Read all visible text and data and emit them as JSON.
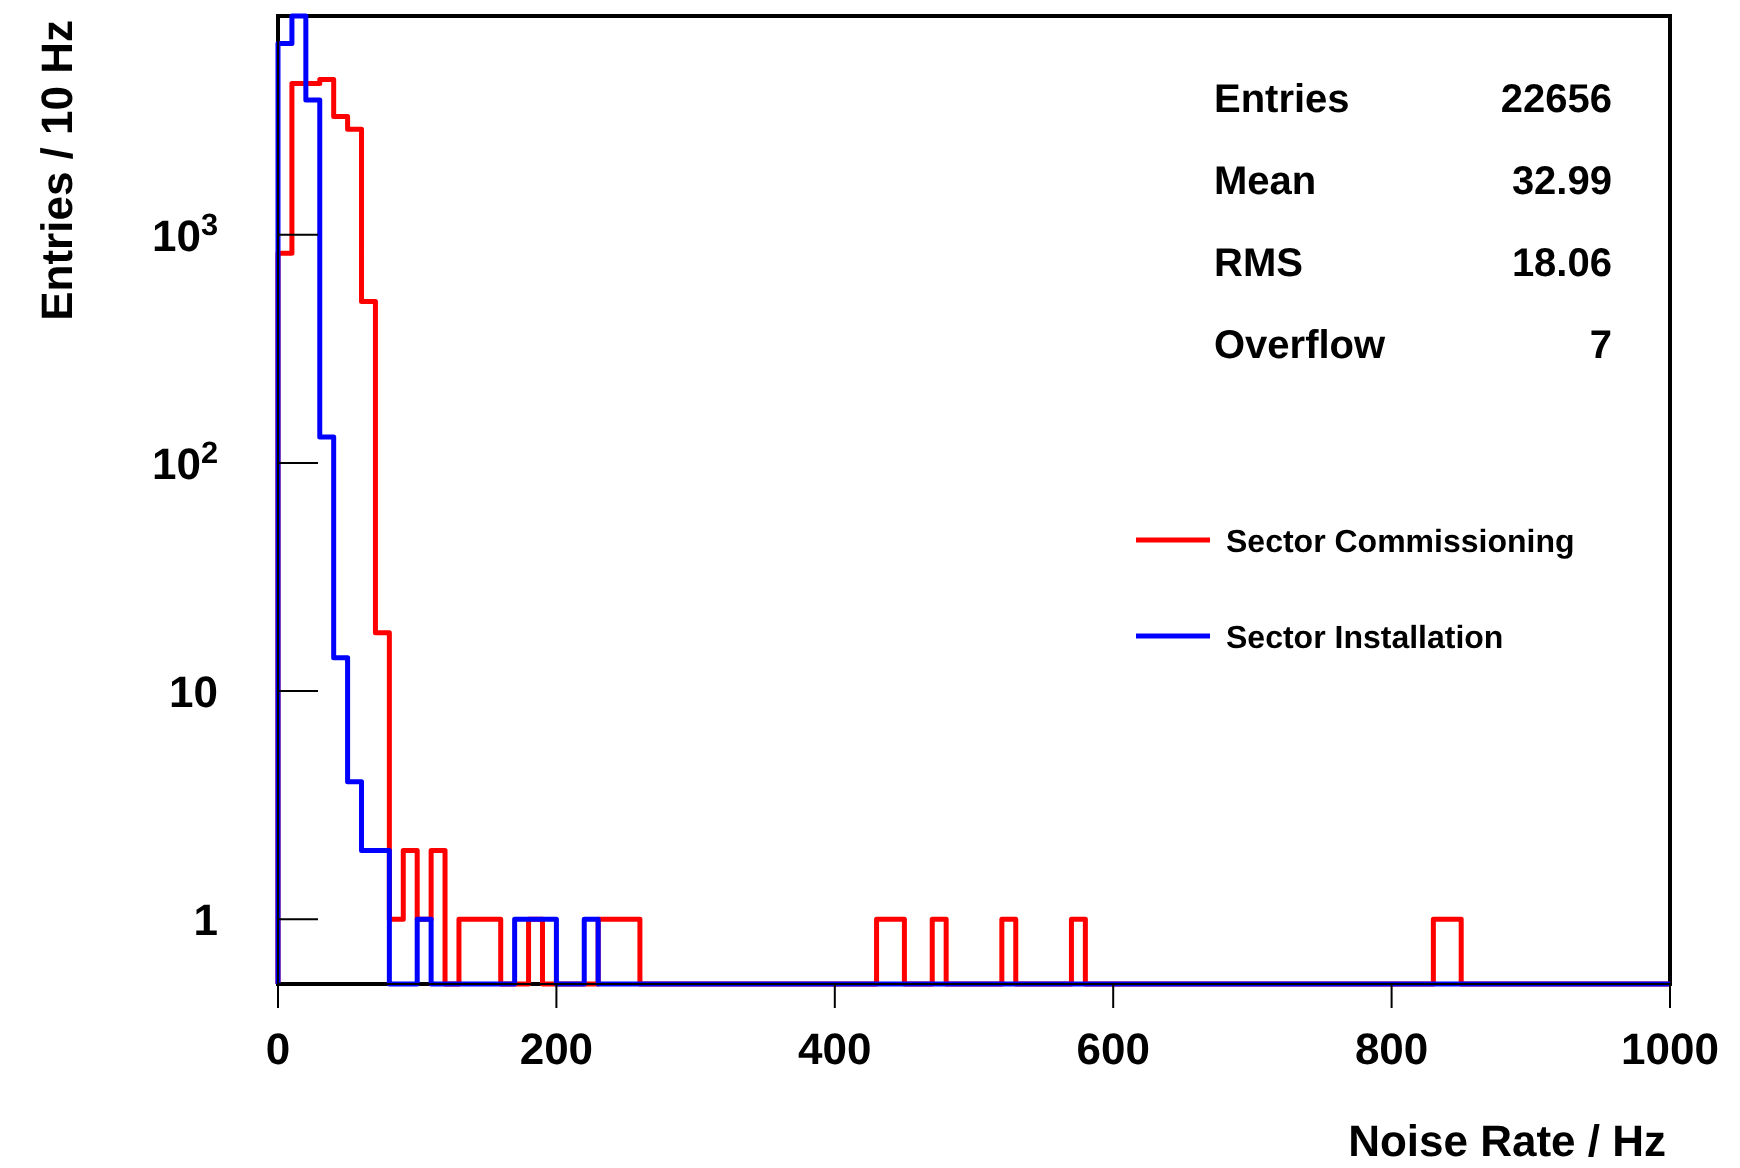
{
  "chart_data": {
    "type": "histogram",
    "xlabel": "Noise Rate  / Hz",
    "ylabel": "Entries  / 10 Hz",
    "annotations": [
      "Entries",
      "22656",
      "Mean",
      "32.99",
      "RMS",
      "18.06",
      "Overflow",
      "7"
    ],
    "bins": [
      0,
      10,
      20,
      30,
      40,
      50,
      60,
      70,
      80,
      90,
      100,
      110,
      120,
      130,
      140,
      150,
      160,
      170,
      180,
      190,
      200,
      210,
      220,
      230,
      240,
      250,
      260,
      270,
      280,
      290,
      300,
      310,
      320,
      330,
      340,
      350,
      360,
      370,
      380,
      390,
      400,
      410,
      420,
      430,
      440,
      450,
      460,
      470,
      480,
      490,
      500,
      510,
      520,
      530,
      540,
      550,
      560,
      570,
      580,
      590,
      600,
      610,
      620,
      630,
      640,
      650,
      660,
      670,
      680,
      690,
      700,
      710,
      720,
      730,
      740,
      750,
      760,
      770,
      780,
      790,
      800,
      810,
      820,
      830,
      840,
      850,
      860,
      870,
      880,
      890,
      900,
      910,
      920,
      930,
      940,
      950,
      960,
      970,
      980,
      990,
      1000
    ],
    "series": [
      {
        "name": "Sector Commissioning",
        "color": "#ff0000",
        "values": [
          830,
          4600,
          4600,
          4800,
          3300,
          2900,
          510,
          18,
          1,
          2,
          1,
          2,
          null,
          1,
          1,
          1,
          null,
          null,
          1,
          null,
          null,
          null,
          null,
          1,
          1,
          1,
          null,
          null,
          null,
          null,
          null,
          null,
          null,
          null,
          null,
          null,
          null,
          null,
          null,
          null,
          null,
          null,
          null,
          1,
          1,
          null,
          null,
          1,
          null,
          null,
          null,
          null,
          1,
          null,
          null,
          null,
          null,
          1,
          null,
          null,
          null,
          null,
          null,
          null,
          null,
          null,
          null,
          null,
          null,
          null,
          null,
          null,
          null,
          null,
          null,
          null,
          null,
          null,
          null,
          null,
          null,
          null,
          null,
          1,
          1,
          null,
          null,
          null,
          null,
          null,
          null,
          null,
          null,
          null,
          null,
          null,
          null,
          null,
          null,
          null
        ]
      },
      {
        "name": "Sector Installation",
        "color": "#0000ff",
        "values": [
          6900,
          9100,
          3900,
          130,
          14,
          4,
          2,
          2,
          null,
          null,
          1,
          null,
          null,
          null,
          null,
          null,
          null,
          1,
          1,
          1,
          null,
          null,
          1,
          null,
          null,
          null,
          null,
          null,
          null,
          null,
          null,
          null,
          null,
          null,
          null,
          null,
          null,
          null,
          null,
          null,
          null,
          null,
          null,
          null,
          null,
          null,
          null,
          null,
          null,
          null,
          null,
          null,
          null,
          null,
          null,
          null,
          null,
          null,
          null,
          null,
          null,
          null,
          null,
          null,
          null,
          null,
          null,
          null,
          null,
          null,
          null,
          null,
          null,
          null,
          null,
          null,
          null,
          null,
          null,
          null,
          null,
          null,
          null,
          null,
          null,
          null,
          null,
          null,
          null,
          null,
          null,
          null,
          null,
          null,
          null,
          null,
          null,
          null,
          null,
          null
        ]
      }
    ],
    "xlim": [
      0,
      1000
    ],
    "xticks": [
      0,
      200,
      400,
      600,
      800,
      1000
    ],
    "ylim": [
      0.52,
      9100
    ],
    "yticks": [
      1,
      10,
      {
        "value": 100,
        "label": "10$^{2}$"
      },
      {
        "value": 1000,
        "label": "10$^{3}$"
      }
    ],
    "log": "y",
    "legend": "right"
  }
}
